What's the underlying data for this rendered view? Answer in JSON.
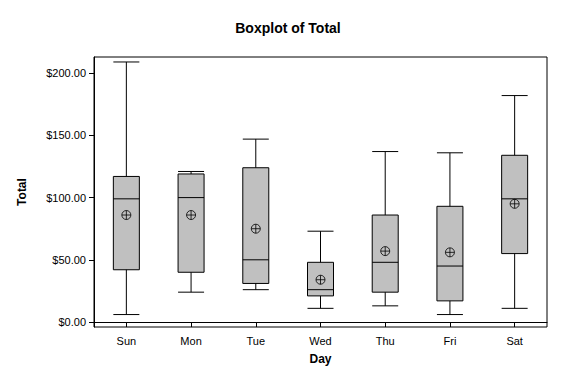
{
  "chart_data": {
    "type": "boxplot",
    "title": "Boxplot of Total",
    "x_label": "Day",
    "y_label": "Total",
    "categories": [
      "Sun",
      "Mon",
      "Tue",
      "Wed",
      "Thu",
      "Fri",
      "Sat"
    ],
    "boxes": [
      [
        6,
        42,
        99,
        117,
        209
      ],
      [
        24,
        40,
        100,
        119,
        121
      ],
      [
        26,
        31,
        50,
        124,
        147
      ],
      [
        11,
        21,
        26,
        48,
        73
      ],
      [
        13,
        24,
        48,
        86,
        137
      ],
      [
        6,
        17,
        45,
        93,
        136
      ],
      [
        11,
        55,
        99,
        134,
        182
      ]
    ],
    "means": [
      86,
      86,
      75,
      34,
      57,
      56,
      95
    ],
    "marker": "circle-cross",
    "color": "#c0c0c0",
    "ylim": [
      -4,
      213
    ],
    "yticks": [
      {
        "value": 0,
        "label": "$0.00"
      },
      {
        "value": 50,
        "label": "$50.00"
      },
      {
        "value": 100,
        "label": "$100.00"
      },
      {
        "value": 150,
        "label": "$150.00"
      },
      {
        "value": 200,
        "label": "$200.00"
      }
    ],
    "grid": false
  }
}
